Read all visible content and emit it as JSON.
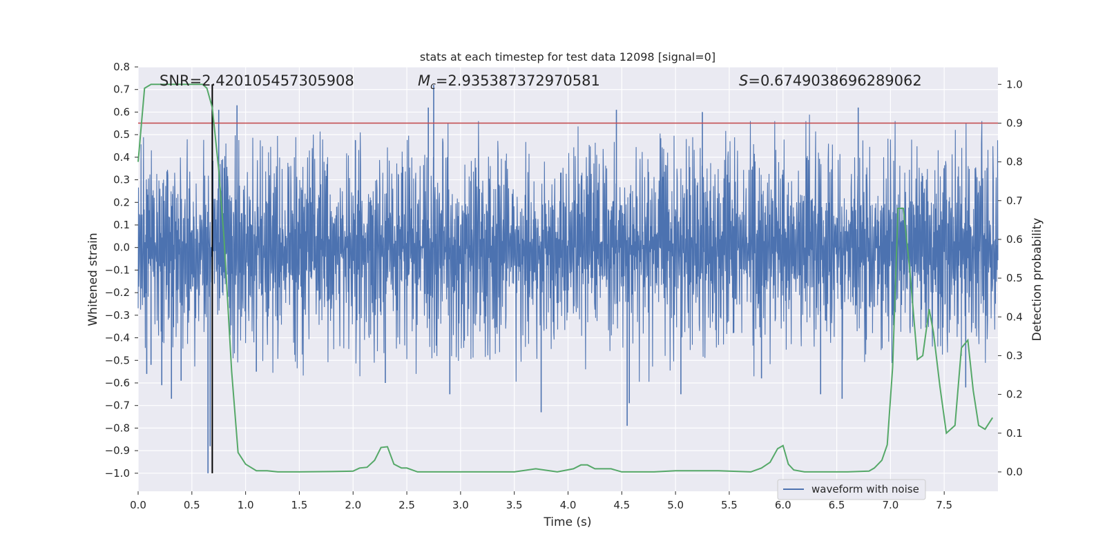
{
  "chart_data": {
    "type": "line",
    "title": "stats at each timestep for test data 12098 [signal=0]",
    "xlabel": "Time (s)",
    "ylabel": "Whitened strain",
    "y2label": "Detection probability",
    "xlim": [
      0,
      8
    ],
    "ylim": [
      -1.08,
      0.8
    ],
    "y2lim": [
      -0.05,
      1.045
    ],
    "x_ticks": [
      "0.0",
      "0.5",
      "1.0",
      "1.5",
      "2.0",
      "2.5",
      "3.0",
      "3.5",
      "4.0",
      "4.5",
      "5.0",
      "5.5",
      "6.0",
      "6.5",
      "7.0",
      "7.5"
    ],
    "x_tick_values": [
      0,
      0.5,
      1,
      1.5,
      2,
      2.5,
      3,
      3.5,
      4,
      4.5,
      5,
      5.5,
      6,
      6.5,
      7,
      7.5
    ],
    "y_ticks": [
      "0.8",
      "0.7",
      "0.6",
      "0.5",
      "0.4",
      "0.3",
      "0.2",
      "0.1",
      "0.0",
      "−0.1",
      "−0.2",
      "−0.3",
      "−0.4",
      "−0.5",
      "−0.6",
      "−0.7",
      "−0.8",
      "−0.9",
      "−1.0"
    ],
    "y_tick_values": [
      0.8,
      0.7,
      0.6,
      0.5,
      0.4,
      0.3,
      0.2,
      0.1,
      0,
      -0.1,
      -0.2,
      -0.3,
      -0.4,
      -0.5,
      -0.6,
      -0.7,
      -0.8,
      -0.9,
      -1.0
    ],
    "y2_ticks": [
      "1.0",
      "0.9",
      "0.8",
      "0.7",
      "0.6",
      "0.5",
      "0.4",
      "0.3",
      "0.2",
      "0.1",
      "0.0"
    ],
    "y2_tick_values": [
      1.0,
      0.9,
      0.8,
      0.7,
      0.6,
      0.5,
      0.4,
      0.3,
      0.2,
      0.1,
      0.0
    ],
    "annotations": {
      "snr": "SNR=2.420105457305908",
      "mc_symbol": "M",
      "mc_sub": "c",
      "mc_value": "=2.935387372970581",
      "s_symbol": "S",
      "s_value": "=0.6749038696289062"
    },
    "legend": {
      "label": "waveform with noise",
      "placement": "lower-right"
    },
    "threshold_prob": 0.9,
    "marker_time": 0.69,
    "waveform": {
      "name": "waveform with noise",
      "color": "#4c72b0",
      "description_typical_range": [
        -0.35,
        0.35
      ],
      "peaks": [
        {
          "t": 0.08,
          "v": -0.56
        },
        {
          "t": 0.12,
          "v": -0.52
        },
        {
          "t": 0.22,
          "v": -0.61
        },
        {
          "t": 0.31,
          "v": -0.67
        },
        {
          "t": 0.4,
          "v": -0.59
        },
        {
          "t": 0.65,
          "v": -1.0
        },
        {
          "t": 0.67,
          "v": -0.88
        },
        {
          "t": 0.75,
          "v": 0.61
        },
        {
          "t": 0.92,
          "v": 0.63
        },
        {
          "t": 1.1,
          "v": -0.55
        },
        {
          "t": 2.3,
          "v": -0.6
        },
        {
          "t": 2.75,
          "v": 0.72
        },
        {
          "t": 2.7,
          "v": 0.62
        },
        {
          "t": 2.9,
          "v": -0.65
        },
        {
          "t": 3.75,
          "v": -0.73
        },
        {
          "t": 4.45,
          "v": 0.61
        },
        {
          "t": 4.55,
          "v": -0.79
        },
        {
          "t": 4.57,
          "v": -0.69
        },
        {
          "t": 5.05,
          "v": -0.65
        },
        {
          "t": 5.25,
          "v": 0.6
        },
        {
          "t": 5.8,
          "v": -0.58
        },
        {
          "t": 6.35,
          "v": -0.65
        },
        {
          "t": 6.55,
          "v": -0.67
        },
        {
          "t": 6.7,
          "v": 0.62
        },
        {
          "t": 7.7,
          "v": -0.62
        }
      ]
    },
    "detection_probability": {
      "color": "#55a868",
      "t": [
        0.0,
        0.06,
        0.12,
        0.2,
        0.3,
        0.4,
        0.5,
        0.6,
        0.64,
        0.69,
        0.75,
        0.8,
        0.87,
        0.93,
        1.0,
        1.1,
        1.2,
        1.3,
        1.5,
        1.8,
        2.0,
        2.06,
        2.13,
        2.2,
        2.26,
        2.32,
        2.38,
        2.45,
        2.5,
        2.6,
        2.8,
        3.0,
        3.2,
        3.4,
        3.5,
        3.7,
        3.9,
        4.05,
        4.12,
        4.18,
        4.25,
        4.32,
        4.4,
        4.5,
        4.6,
        4.8,
        5.0,
        5.2,
        5.4,
        5.7,
        5.8,
        5.88,
        5.95,
        6.0,
        6.05,
        6.1,
        6.2,
        6.4,
        6.6,
        6.8,
        6.85,
        6.92,
        6.97,
        7.02,
        7.07,
        7.12,
        7.18,
        7.25,
        7.3,
        7.36,
        7.4,
        7.46,
        7.52,
        7.6,
        7.66,
        7.72,
        7.77,
        7.82,
        7.88,
        7.95
      ],
      "p": [
        0.8,
        0.99,
        1.0,
        1.0,
        1.0,
        1.0,
        1.0,
        1.0,
        0.99,
        0.94,
        0.78,
        0.6,
        0.26,
        0.05,
        0.02,
        0.003,
        0.003,
        0.0,
        0.0,
        0.001,
        0.002,
        0.01,
        0.012,
        0.03,
        0.063,
        0.065,
        0.02,
        0.01,
        0.01,
        0.0,
        0.0,
        0.0,
        0.0,
        0.0,
        0.0,
        0.008,
        0.0,
        0.008,
        0.018,
        0.018,
        0.008,
        0.008,
        0.008,
        0.0,
        0.0,
        0.0,
        0.003,
        0.003,
        0.003,
        0.0,
        0.01,
        0.025,
        0.06,
        0.068,
        0.02,
        0.005,
        0.0,
        0.0,
        0.0,
        0.002,
        0.01,
        0.03,
        0.07,
        0.27,
        0.68,
        0.68,
        0.52,
        0.29,
        0.3,
        0.42,
        0.36,
        0.22,
        0.1,
        0.12,
        0.32,
        0.34,
        0.21,
        0.12,
        0.11,
        0.14
      ]
    }
  }
}
